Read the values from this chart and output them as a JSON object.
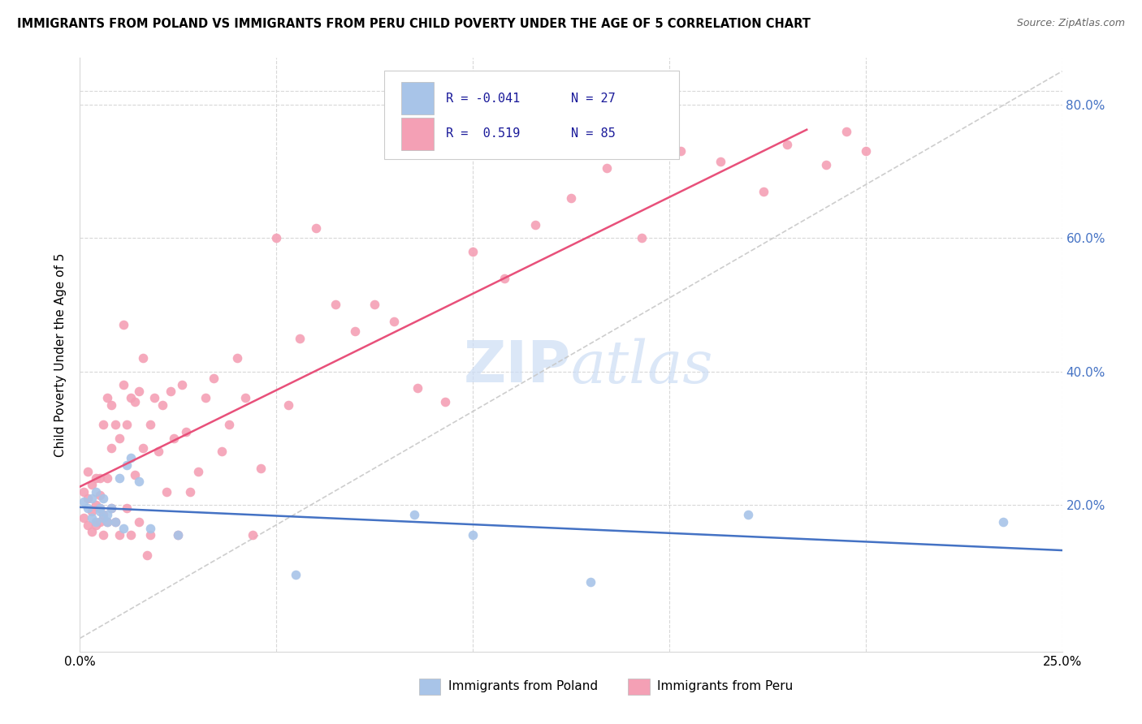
{
  "title": "IMMIGRANTS FROM POLAND VS IMMIGRANTS FROM PERU CHILD POVERTY UNDER THE AGE OF 5 CORRELATION CHART",
  "source": "Source: ZipAtlas.com",
  "ylabel": "Child Poverty Under the Age of 5",
  "legend_label_poland": "Immigrants from Poland",
  "legend_label_peru": "Immigrants from Peru",
  "R_poland": -0.041,
  "N_poland": 27,
  "R_peru": 0.519,
  "N_peru": 85,
  "xlim": [
    0.0,
    0.25
  ],
  "ylim": [
    -0.02,
    0.87
  ],
  "xticks": [
    0.0,
    0.05,
    0.1,
    0.15,
    0.2,
    0.25
  ],
  "xtick_labels": [
    "0.0%",
    "",
    "",
    "",
    "",
    "25.0%"
  ],
  "yticks": [
    0.0,
    0.2,
    0.4,
    0.6,
    0.8
  ],
  "ytick_labels": [
    "",
    "20.0%",
    "40.0%",
    "60.0%",
    "80.0%"
  ],
  "color_poland": "#a8c4e8",
  "color_peru": "#f4a0b5",
  "trendline_poland": "#4472c4",
  "trendline_peru": "#e8507a",
  "refline_color": "#c8c8c8",
  "watermark_color": "#ccddf5",
  "poland_x": [
    0.001,
    0.002,
    0.003,
    0.003,
    0.004,
    0.004,
    0.005,
    0.005,
    0.006,
    0.006,
    0.007,
    0.007,
    0.008,
    0.009,
    0.01,
    0.011,
    0.012,
    0.013,
    0.015,
    0.018,
    0.025,
    0.055,
    0.085,
    0.1,
    0.13,
    0.17,
    0.235
  ],
  "poland_y": [
    0.205,
    0.195,
    0.18,
    0.21,
    0.175,
    0.22,
    0.195,
    0.19,
    0.18,
    0.21,
    0.175,
    0.185,
    0.195,
    0.175,
    0.24,
    0.165,
    0.26,
    0.27,
    0.235,
    0.165,
    0.155,
    0.095,
    0.185,
    0.155,
    0.085,
    0.185,
    0.175
  ],
  "peru_x": [
    0.001,
    0.001,
    0.002,
    0.002,
    0.002,
    0.003,
    0.003,
    0.003,
    0.004,
    0.004,
    0.004,
    0.005,
    0.005,
    0.005,
    0.005,
    0.006,
    0.006,
    0.006,
    0.007,
    0.007,
    0.007,
    0.008,
    0.008,
    0.008,
    0.009,
    0.009,
    0.01,
    0.01,
    0.011,
    0.011,
    0.012,
    0.012,
    0.013,
    0.013,
    0.014,
    0.014,
    0.015,
    0.015,
    0.016,
    0.016,
    0.017,
    0.018,
    0.018,
    0.019,
    0.02,
    0.021,
    0.022,
    0.023,
    0.024,
    0.025,
    0.026,
    0.027,
    0.028,
    0.03,
    0.032,
    0.034,
    0.036,
    0.038,
    0.04,
    0.042,
    0.044,
    0.046,
    0.05,
    0.053,
    0.056,
    0.06,
    0.065,
    0.07,
    0.075,
    0.08,
    0.086,
    0.093,
    0.1,
    0.108,
    0.116,
    0.125,
    0.134,
    0.143,
    0.153,
    0.163,
    0.174,
    0.18,
    0.19,
    0.195,
    0.2
  ],
  "peru_y": [
    0.18,
    0.22,
    0.17,
    0.21,
    0.25,
    0.16,
    0.19,
    0.23,
    0.17,
    0.2,
    0.24,
    0.175,
    0.195,
    0.215,
    0.24,
    0.155,
    0.185,
    0.32,
    0.175,
    0.24,
    0.36,
    0.195,
    0.285,
    0.35,
    0.175,
    0.32,
    0.155,
    0.3,
    0.38,
    0.47,
    0.195,
    0.32,
    0.155,
    0.36,
    0.245,
    0.355,
    0.175,
    0.37,
    0.285,
    0.42,
    0.125,
    0.155,
    0.32,
    0.36,
    0.28,
    0.35,
    0.22,
    0.37,
    0.3,
    0.155,
    0.38,
    0.31,
    0.22,
    0.25,
    0.36,
    0.39,
    0.28,
    0.32,
    0.42,
    0.36,
    0.155,
    0.255,
    0.6,
    0.35,
    0.45,
    0.615,
    0.5,
    0.46,
    0.5,
    0.475,
    0.375,
    0.355,
    0.58,
    0.54,
    0.62,
    0.66,
    0.705,
    0.6,
    0.73,
    0.715,
    0.67,
    0.74,
    0.71,
    0.76,
    0.73
  ]
}
